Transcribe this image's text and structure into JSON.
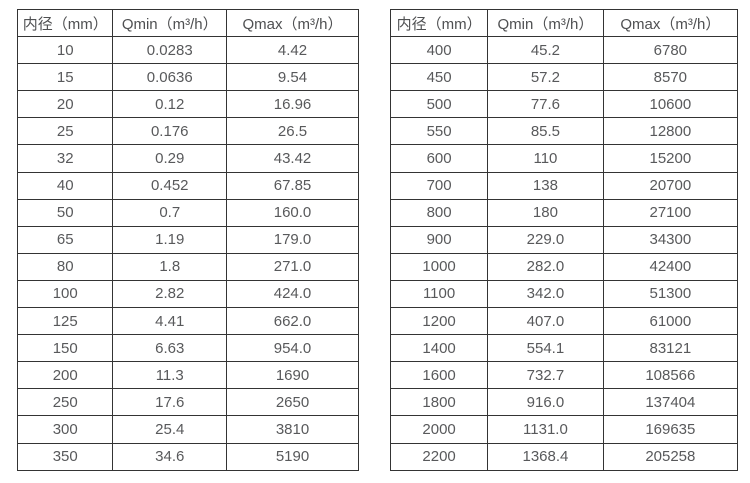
{
  "tables": [
    {
      "name": "small-diameter-flow-table",
      "headers": [
        "内径（mm）",
        "Qmin（m³/h）",
        "Qmax（m³/h）"
      ],
      "rows": [
        [
          "10",
          "0.0283",
          "4.42"
        ],
        [
          "15",
          "0.0636",
          "9.54"
        ],
        [
          "20",
          "0.12",
          "16.96"
        ],
        [
          "25",
          "0.176",
          "26.5"
        ],
        [
          "32",
          "0.29",
          "43.42"
        ],
        [
          "40",
          "0.452",
          "67.85"
        ],
        [
          "50",
          "0.7",
          "160.0"
        ],
        [
          "65",
          "1.19",
          "179.0"
        ],
        [
          "80",
          "1.8",
          "271.0"
        ],
        [
          "100",
          "2.82",
          "424.0"
        ],
        [
          "125",
          "4.41",
          "662.0"
        ],
        [
          "150",
          "6.63",
          "954.0"
        ],
        [
          "200",
          "11.3",
          "1690"
        ],
        [
          "250",
          "17.6",
          "2650"
        ],
        [
          "300",
          "25.4",
          "3810"
        ],
        [
          "350",
          "34.6",
          "5190"
        ]
      ]
    },
    {
      "name": "large-diameter-flow-table",
      "headers": [
        "内径（mm）",
        "Qmin（m³/h）",
        "Qmax（m³/h）"
      ],
      "rows": [
        [
          "400",
          "45.2",
          "6780"
        ],
        [
          "450",
          "57.2",
          "8570"
        ],
        [
          "500",
          "77.6",
          "10600"
        ],
        [
          "550",
          "85.5",
          "12800"
        ],
        [
          "600",
          "110",
          "15200"
        ],
        [
          "700",
          "138",
          "20700"
        ],
        [
          "800",
          "180",
          "27100"
        ],
        [
          "900",
          "229.0",
          "34300"
        ],
        [
          "1000",
          "282.0",
          "42400"
        ],
        [
          "1100",
          "342.0",
          "51300"
        ],
        [
          "1200",
          "407.0",
          "61000"
        ],
        [
          "1400",
          "554.1",
          "83121"
        ],
        [
          "1600",
          "732.7",
          "108566"
        ],
        [
          "1800",
          "916.0",
          "137404"
        ],
        [
          "2000",
          "1131.0",
          "169635"
        ],
        [
          "2200",
          "1368.4",
          "205258"
        ]
      ]
    }
  ],
  "colors": {
    "border": "#343434",
    "text": "#58595b",
    "background": "#ffffff"
  }
}
